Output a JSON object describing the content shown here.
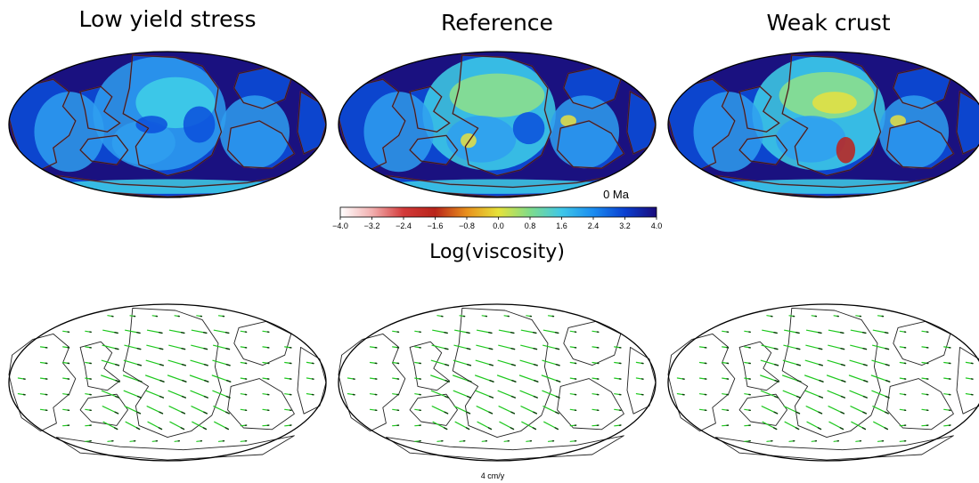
{
  "panels": [
    {
      "title": "Low yield stress"
    },
    {
      "title": "Reference"
    },
    {
      "title": "Weak crust"
    }
  ],
  "age_label": "0 Ma",
  "colorbar": {
    "title": "Log(viscosity)",
    "tick_labels": [
      "−4.0",
      "−3.2",
      "−2.4",
      "−1.6",
      "−0.8",
      "0.0",
      "0.8",
      "1.6",
      "2.4",
      "3.2",
      "4.0"
    ],
    "colors": [
      "#ffffff",
      "#f2b0b0",
      "#d33a3a",
      "#b8241a",
      "#e8901c",
      "#e6e23a",
      "#7fdc8a",
      "#3fc7e8",
      "#1a8cf0",
      "#0a3fd0",
      "#1a0a7a"
    ]
  },
  "map_colors": {
    "ocean_background": "#1a1180",
    "mid_blue": "#0a4fdc",
    "light_blue": "#2f9ff0",
    "cyan": "#3fd0e8",
    "green": "#8fe088",
    "yellow": "#e8e040",
    "red": "#c0201a"
  },
  "velocity_scale_label": "4 cm/y"
}
